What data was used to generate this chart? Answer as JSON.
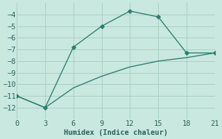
{
  "line1_x": [
    0,
    3,
    6,
    9,
    12,
    15,
    18,
    21
  ],
  "line1_y": [
    -11,
    -12,
    -6.8,
    -5,
    -3.7,
    -4.2,
    -7.3,
    -7.3
  ],
  "line2_x": [
    0,
    3,
    6,
    9,
    12,
    15,
    18,
    21
  ],
  "line2_y": [
    -11,
    -12,
    -10.3,
    -9.3,
    -8.5,
    -8.0,
    -7.7,
    -7.3
  ],
  "color": "#2e7d6e",
  "bg_color": "#c8e8e0",
  "grid_color": "#aacfc5",
  "xlabel": "Humidex (Indice chaleur)",
  "xlim": [
    0,
    21
  ],
  "ylim": [
    -13,
    -3
  ],
  "xticks": [
    0,
    3,
    6,
    9,
    12,
    15,
    18,
    21
  ],
  "yticks": [
    -12,
    -11,
    -10,
    -9,
    -8,
    -7,
    -6,
    -5,
    -4
  ],
  "font_color": "#2e5f5a",
  "font_size": 7.5
}
